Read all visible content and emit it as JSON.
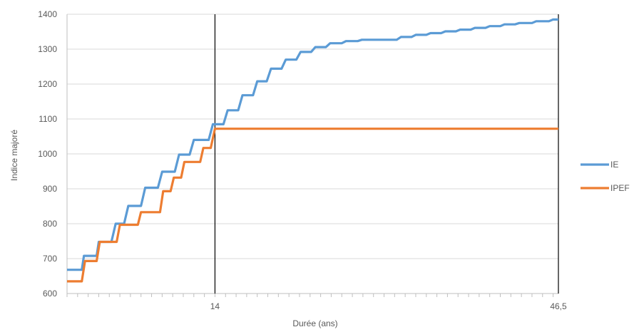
{
  "chart_data": {
    "type": "line",
    "title": "",
    "xlabel": "Durée (ans)",
    "ylabel": "Indice majoré",
    "xlim": [
      0,
      46.5
    ],
    "ylim": [
      600,
      1400
    ],
    "ytick_values": [
      600,
      700,
      800,
      900,
      1000,
      1100,
      1200,
      1300,
      1400
    ],
    "yticks": [
      "600",
      "700",
      "800",
      "900",
      "1000",
      "1100",
      "1200",
      "1300",
      "1400"
    ],
    "xticks": [
      {
        "value": 14,
        "label": "14"
      },
      {
        "value": 46.5,
        "label": "46,5"
      }
    ],
    "vertical_lines": [
      14,
      46.5
    ],
    "grid": {
      "horizontal": true,
      "vertical": false
    },
    "legend_position": "right",
    "series": [
      {
        "name": "IE",
        "color": "#5B9BD5",
        "points": [
          [
            0,
            668
          ],
          [
            1.4,
            668
          ],
          [
            1.6,
            708
          ],
          [
            2.8,
            708
          ],
          [
            3.0,
            748
          ],
          [
            4.2,
            748
          ],
          [
            4.6,
            800
          ],
          [
            5.4,
            800
          ],
          [
            5.8,
            851
          ],
          [
            7.0,
            851
          ],
          [
            7.4,
            903
          ],
          [
            8.6,
            903
          ],
          [
            9.0,
            949
          ],
          [
            10.2,
            949
          ],
          [
            10.6,
            998
          ],
          [
            11.6,
            998
          ],
          [
            12.0,
            1040
          ],
          [
            13.4,
            1040
          ],
          [
            13.8,
            1085
          ],
          [
            14.8,
            1085
          ],
          [
            15.2,
            1125
          ],
          [
            16.2,
            1125
          ],
          [
            16.6,
            1168
          ],
          [
            17.6,
            1168
          ],
          [
            18.0,
            1208
          ],
          [
            18.9,
            1208
          ],
          [
            19.3,
            1244
          ],
          [
            20.3,
            1244
          ],
          [
            20.7,
            1270
          ],
          [
            21.7,
            1270
          ],
          [
            22.1,
            1292
          ],
          [
            23.1,
            1292
          ],
          [
            23.5,
            1306
          ],
          [
            24.5,
            1306
          ],
          [
            24.9,
            1317
          ],
          [
            26.0,
            1317
          ],
          [
            26.4,
            1323
          ],
          [
            27.5,
            1323
          ],
          [
            27.9,
            1327
          ],
          [
            31.2,
            1327
          ],
          [
            31.6,
            1335
          ],
          [
            32.6,
            1335
          ],
          [
            33.0,
            1341
          ],
          [
            34.0,
            1341
          ],
          [
            34.4,
            1346
          ],
          [
            35.4,
            1346
          ],
          [
            35.8,
            1351
          ],
          [
            36.8,
            1351
          ],
          [
            37.2,
            1356
          ],
          [
            38.2,
            1356
          ],
          [
            38.6,
            1361
          ],
          [
            39.6,
            1361
          ],
          [
            40.0,
            1366
          ],
          [
            41.0,
            1366
          ],
          [
            41.4,
            1371
          ],
          [
            42.4,
            1371
          ],
          [
            42.8,
            1375
          ],
          [
            44.0,
            1375
          ],
          [
            44.4,
            1380
          ],
          [
            45.6,
            1380
          ],
          [
            46.0,
            1385
          ],
          [
            46.5,
            1385
          ]
        ]
      },
      {
        "name": "IPEF",
        "color": "#ED7D31",
        "points": [
          [
            0,
            635
          ],
          [
            1.4,
            635
          ],
          [
            1.7,
            693
          ],
          [
            2.8,
            693
          ],
          [
            3.1,
            748
          ],
          [
            4.7,
            748
          ],
          [
            5.0,
            797
          ],
          [
            6.7,
            797
          ],
          [
            7.0,
            833
          ],
          [
            8.8,
            833
          ],
          [
            9.1,
            893
          ],
          [
            9.8,
            893
          ],
          [
            10.1,
            932
          ],
          [
            10.8,
            932
          ],
          [
            11.1,
            977
          ],
          [
            12.6,
            977
          ],
          [
            12.9,
            1017
          ],
          [
            13.6,
            1017
          ],
          [
            14.0,
            1072
          ],
          [
            46.5,
            1072
          ]
        ]
      }
    ]
  }
}
